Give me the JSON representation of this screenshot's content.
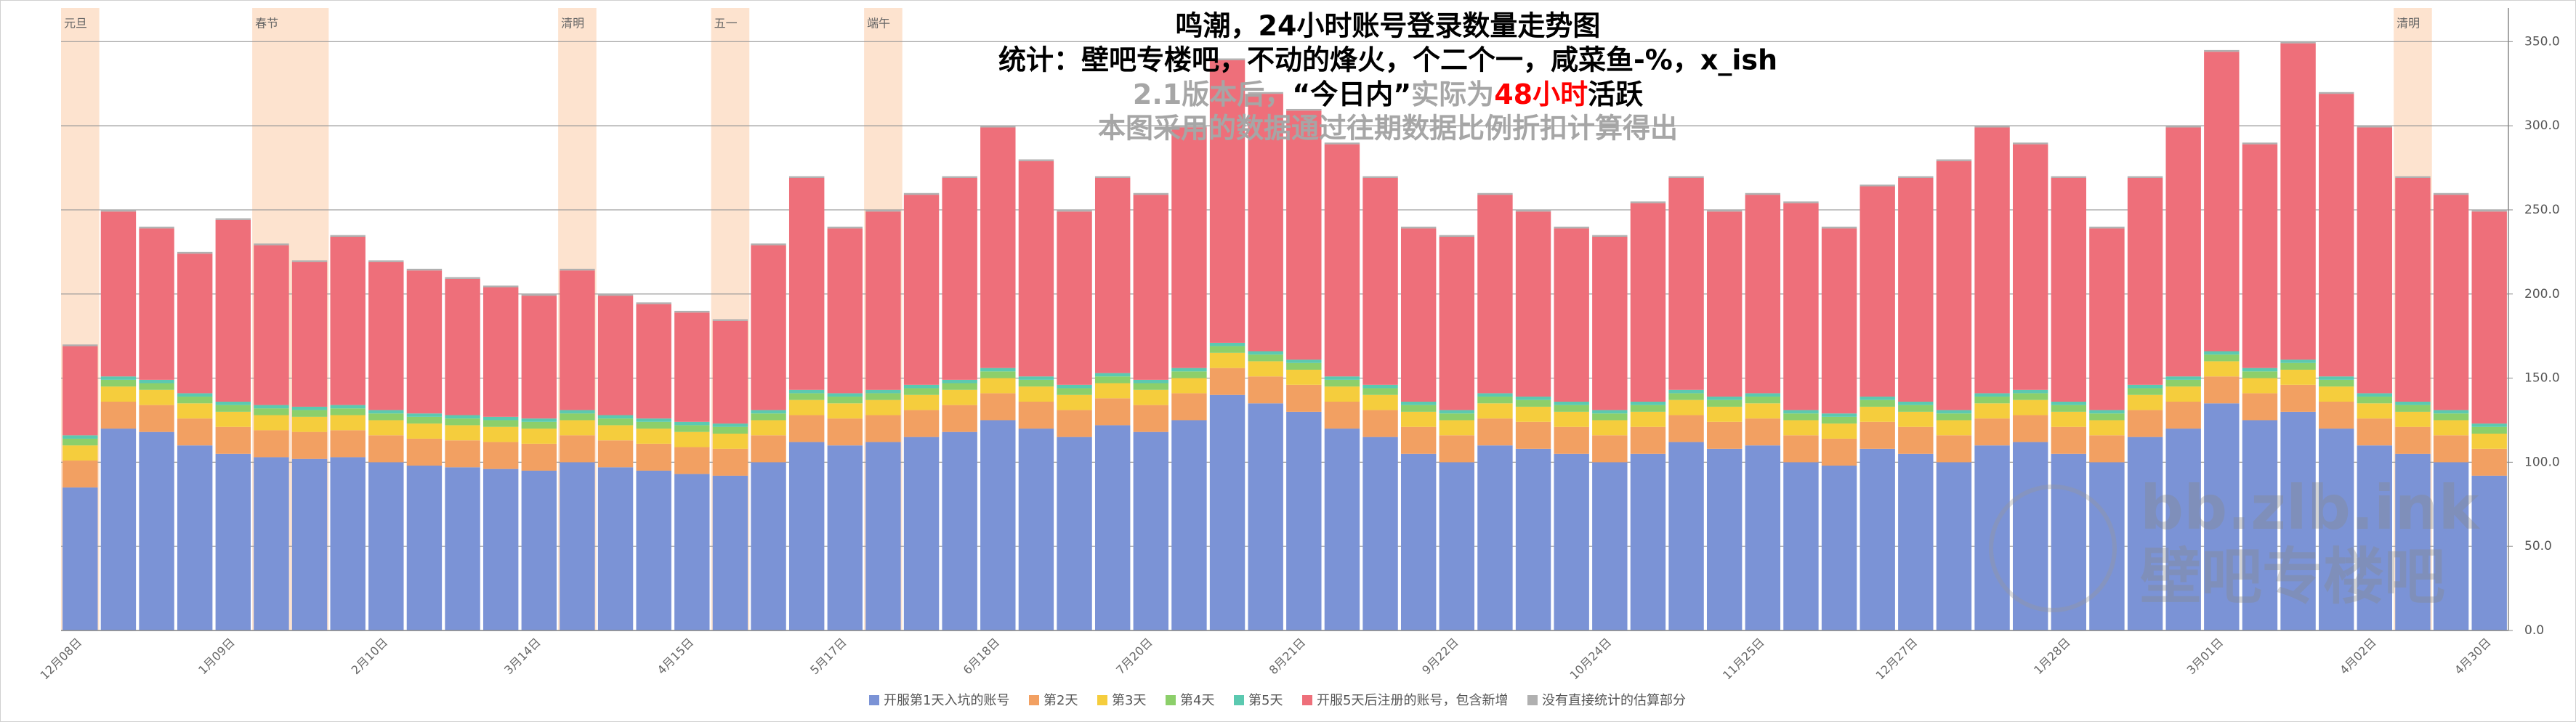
{
  "chart_data": {
    "type": "stacked_bar",
    "title": "鸣潮，24小时账号登录数量走势图",
    "subtitle": "统计：壁吧专楼吧，不动的烽火，个二个一，咸菜鱼-%，x_ish",
    "note_parts": [
      {
        "text": "2.1版本后，",
        "color": "#a6a6a6"
      },
      {
        "text": "“今日内”",
        "color": "#000000"
      },
      {
        "text": "实际为",
        "color": "#a6a6a6"
      },
      {
        "text": "48小时",
        "color": "#ff0000"
      },
      {
        "text": "活跃",
        "color": "#000000"
      }
    ],
    "note2": "本图采用的数据通过往期数据比例折扣计算得出",
    "watermark": [
      "bb.zlb.ink",
      "壁吧专楼吧"
    ],
    "categories": [
      "12月08日",
      null,
      null,
      null,
      "1月09日",
      null,
      null,
      null,
      "2月10日",
      null,
      null,
      null,
      "3月14日",
      null,
      null,
      null,
      "4月15日",
      null,
      null,
      null,
      "5月17日",
      null,
      null,
      null,
      "6月18日",
      null,
      null,
      null,
      "7月20日",
      null,
      null,
      null,
      "8月21日",
      null,
      null,
      null,
      "9月22日",
      null,
      null,
      null,
      "10月24日",
      null,
      null,
      null,
      "11月25日",
      null,
      null,
      null,
      "12月27日",
      null,
      null,
      null,
      "1月28日",
      null,
      null,
      null,
      "3月01日",
      null,
      null,
      null,
      "4月02日",
      null,
      null,
      "4月30日"
    ],
    "holidays": [
      {
        "label": "元旦",
        "from": 0,
        "to": 0
      },
      {
        "label": "春节",
        "from": 5,
        "to": 6
      },
      {
        "label": "清明",
        "from": 13,
        "to": 13
      },
      {
        "label": "五一",
        "from": 17,
        "to": 17
      },
      {
        "label": "端午",
        "from": 21,
        "to": 21
      },
      {
        "label": "清明",
        "from": 61,
        "to": 61
      }
    ],
    "series": [
      {
        "name": "开服第1天入坑的账号",
        "color": "#7b93d6",
        "values": [
          85,
          120,
          118,
          110,
          105,
          103,
          102,
          103,
          100,
          98,
          97,
          96,
          95,
          100,
          97,
          95,
          93,
          92,
          100,
          112,
          110,
          112,
          115,
          118,
          125,
          120,
          115,
          122,
          118,
          125,
          140,
          135,
          130,
          120,
          115,
          105,
          100,
          110,
          108,
          105,
          100,
          105,
          112,
          108,
          110,
          100,
          98,
          108,
          105,
          100,
          110,
          112,
          105,
          100,
          115,
          120,
          135,
          125,
          130,
          120,
          110,
          105,
          100,
          92
        ]
      },
      {
        "name": "第2天",
        "color": "#f2a062",
        "values": [
          16,
          16,
          16,
          16,
          16,
          16,
          16,
          16,
          16,
          16,
          16,
          16,
          16,
          16,
          16,
          16,
          16,
          16,
          16,
          16,
          16,
          16,
          16,
          16,
          16,
          16,
          16,
          16,
          16,
          16,
          16,
          16,
          16,
          16,
          16,
          16,
          16,
          16,
          16,
          16,
          16,
          16,
          16,
          16,
          16,
          16,
          16,
          16,
          16,
          16,
          16,
          16,
          16,
          16,
          16,
          16,
          16,
          16,
          16,
          16,
          16,
          16,
          16,
          16
        ]
      },
      {
        "name": "第3天",
        "color": "#f5cd3d",
        "values": [
          9,
          9,
          9,
          9,
          9,
          9,
          9,
          9,
          9,
          9,
          9,
          9,
          9,
          9,
          9,
          9,
          9,
          9,
          9,
          9,
          9,
          9,
          9,
          9,
          9,
          9,
          9,
          9,
          9,
          9,
          9,
          9,
          9,
          9,
          9,
          9,
          9,
          9,
          9,
          9,
          9,
          9,
          9,
          9,
          9,
          9,
          9,
          9,
          9,
          9,
          9,
          9,
          9,
          9,
          9,
          9,
          9,
          9,
          9,
          9,
          9,
          9,
          9,
          9
        ]
      },
      {
        "name": "第4天",
        "color": "#8ccf6a",
        "values": [
          4,
          4,
          4,
          4,
          4,
          4,
          4,
          4,
          4,
          4,
          4,
          4,
          4,
          4,
          4,
          4,
          4,
          4,
          4,
          4,
          4,
          4,
          4,
          4,
          4,
          4,
          4,
          4,
          4,
          4,
          4,
          4,
          4,
          4,
          4,
          4,
          4,
          4,
          4,
          4,
          4,
          4,
          4,
          4,
          4,
          4,
          4,
          4,
          4,
          4,
          4,
          4,
          4,
          4,
          4,
          4,
          4,
          4,
          4,
          4,
          4,
          4,
          4,
          4
        ]
      },
      {
        "name": "第5天",
        "color": "#5bc9b0",
        "values": [
          2,
          2,
          2,
          2,
          2,
          2,
          2,
          2,
          2,
          2,
          2,
          2,
          2,
          2,
          2,
          2,
          2,
          2,
          2,
          2,
          2,
          2,
          2,
          2,
          2,
          2,
          2,
          2,
          2,
          2,
          2,
          2,
          2,
          2,
          2,
          2,
          2,
          2,
          2,
          2,
          2,
          2,
          2,
          2,
          2,
          2,
          2,
          2,
          2,
          2,
          2,
          2,
          2,
          2,
          2,
          2,
          2,
          2,
          2,
          2,
          2,
          2,
          2,
          2
        ]
      },
      {
        "name": "开服5天后注册的账号，包含新增",
        "color": "#ee6f7a",
        "values": [
          53,
          98,
          90,
          83,
          108,
          95,
          86,
          100,
          88,
          85,
          81,
          77,
          73,
          83,
          71,
          68,
          65,
          61,
          98,
          126,
          98,
          106,
          113,
          120,
          143,
          128,
          103,
          116,
          110,
          143,
          168,
          153,
          148,
          138,
          123,
          103,
          103,
          118,
          110,
          103,
          103,
          118,
          126,
          110,
          118,
          123,
          110,
          125,
          133,
          148,
          158,
          146,
          133,
          108,
          123,
          148,
          178,
          133,
          188,
          168,
          158,
          133,
          128,
          126
        ]
      },
      {
        "name": "没有直接统计的估算部分",
        "color": "#b0b0b0",
        "values": [
          1,
          1,
          1,
          1,
          1,
          1,
          1,
          1,
          1,
          1,
          1,
          1,
          1,
          1,
          1,
          1,
          1,
          1,
          1,
          1,
          1,
          1,
          1,
          1,
          1,
          1,
          1,
          1,
          1,
          1,
          1,
          1,
          1,
          1,
          1,
          1,
          1,
          1,
          1,
          1,
          1,
          1,
          1,
          1,
          1,
          1,
          1,
          1,
          1,
          1,
          1,
          1,
          1,
          1,
          1,
          1,
          1,
          1,
          1,
          1,
          1,
          1,
          1,
          1
        ]
      }
    ],
    "holiday_color": "#fde3cf",
    "ylim": [
      0,
      370
    ],
    "yticks": [
      {
        "value": 0,
        "label": "0.0"
      },
      {
        "value": 50,
        "label": "50.0"
      },
      {
        "value": 100,
        "label": "100.0"
      },
      {
        "value": 150,
        "label": "150.0"
      },
      {
        "value": 200,
        "label": "200.0"
      },
      {
        "value": 250,
        "label": "250.0"
      },
      {
        "value": 300,
        "label": "300.0"
      },
      {
        "value": 350,
        "label": "350.0"
      }
    ],
    "grid": true
  }
}
